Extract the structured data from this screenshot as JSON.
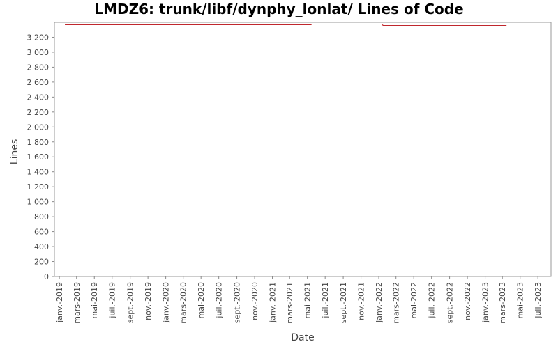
{
  "chart_data": {
    "type": "line",
    "title": "LMDZ6: trunk/libf/dynphy_lonlat/ Lines of Code",
    "x_label": "Date",
    "y_label": "Lines",
    "x": [
      "2019-01-20",
      "2021-05-14",
      "2021-05-15",
      "2022-01-14",
      "2022-01-15",
      "2023-03-14",
      "2023-03-15",
      "2023-07-05"
    ],
    "series": [
      {
        "name": "Lines",
        "color": "#c0272d",
        "values": [
          3367,
          3367,
          3377,
          3377,
          3358,
          3358,
          3349,
          3349
        ]
      }
    ],
    "xlim": [
      "2018-12-15",
      "2023-08-15"
    ],
    "xticks": [
      {
        "value": "2019-01-01",
        "label": "janv.-2019"
      },
      {
        "value": "2019-03-01",
        "label": "mars-2019"
      },
      {
        "value": "2019-05-01",
        "label": "mai-2019"
      },
      {
        "value": "2019-07-01",
        "label": "juil.-2019"
      },
      {
        "value": "2019-09-01",
        "label": "sept.-2019"
      },
      {
        "value": "2019-11-01",
        "label": "nov.-2019"
      },
      {
        "value": "2020-01-01",
        "label": "janv.-2020"
      },
      {
        "value": "2020-03-01",
        "label": "mars-2020"
      },
      {
        "value": "2020-05-01",
        "label": "mai-2020"
      },
      {
        "value": "2020-07-01",
        "label": "juil.-2020"
      },
      {
        "value": "2020-09-01",
        "label": "sept.-2020"
      },
      {
        "value": "2020-11-01",
        "label": "nov.-2020"
      },
      {
        "value": "2021-01-01",
        "label": "janv.-2021"
      },
      {
        "value": "2021-03-01",
        "label": "mars-2021"
      },
      {
        "value": "2021-05-01",
        "label": "mai-2021"
      },
      {
        "value": "2021-07-01",
        "label": "juil.-2021"
      },
      {
        "value": "2021-09-01",
        "label": "sept.-2021"
      },
      {
        "value": "2021-11-01",
        "label": "nov.-2021"
      },
      {
        "value": "2022-01-01",
        "label": "janv.-2022"
      },
      {
        "value": "2022-03-01",
        "label": "mars-2022"
      },
      {
        "value": "2022-05-01",
        "label": "mai-2022"
      },
      {
        "value": "2022-07-01",
        "label": "juil.-2022"
      },
      {
        "value": "2022-09-01",
        "label": "sept.-2022"
      },
      {
        "value": "2022-11-01",
        "label": "nov.-2022"
      },
      {
        "value": "2023-01-01",
        "label": "janv.-2023"
      },
      {
        "value": "2023-03-01",
        "label": "mars-2023"
      },
      {
        "value": "2023-05-01",
        "label": "mai-2023"
      },
      {
        "value": "2023-07-01",
        "label": "juil.-2023"
      }
    ],
    "ylim": [
      0,
      3400
    ],
    "yticks": [
      0,
      200,
      400,
      600,
      800,
      {
        "value": 1000,
        "label": "1 000"
      },
      {
        "value": 1200,
        "label": "1 200"
      },
      {
        "value": 1400,
        "label": "1 400"
      },
      {
        "value": 1600,
        "label": "1 600"
      },
      {
        "value": 1800,
        "label": "1 800"
      },
      {
        "value": 2000,
        "label": "2 000"
      },
      {
        "value": 2200,
        "label": "2 200"
      },
      {
        "value": 2400,
        "label": "2 400"
      },
      {
        "value": 2600,
        "label": "2 600"
      },
      {
        "value": 2800,
        "label": "2 800"
      },
      {
        "value": 3000,
        "label": "3 000"
      },
      {
        "value": 3200,
        "label": "3 200"
      }
    ],
    "grid": false
  }
}
